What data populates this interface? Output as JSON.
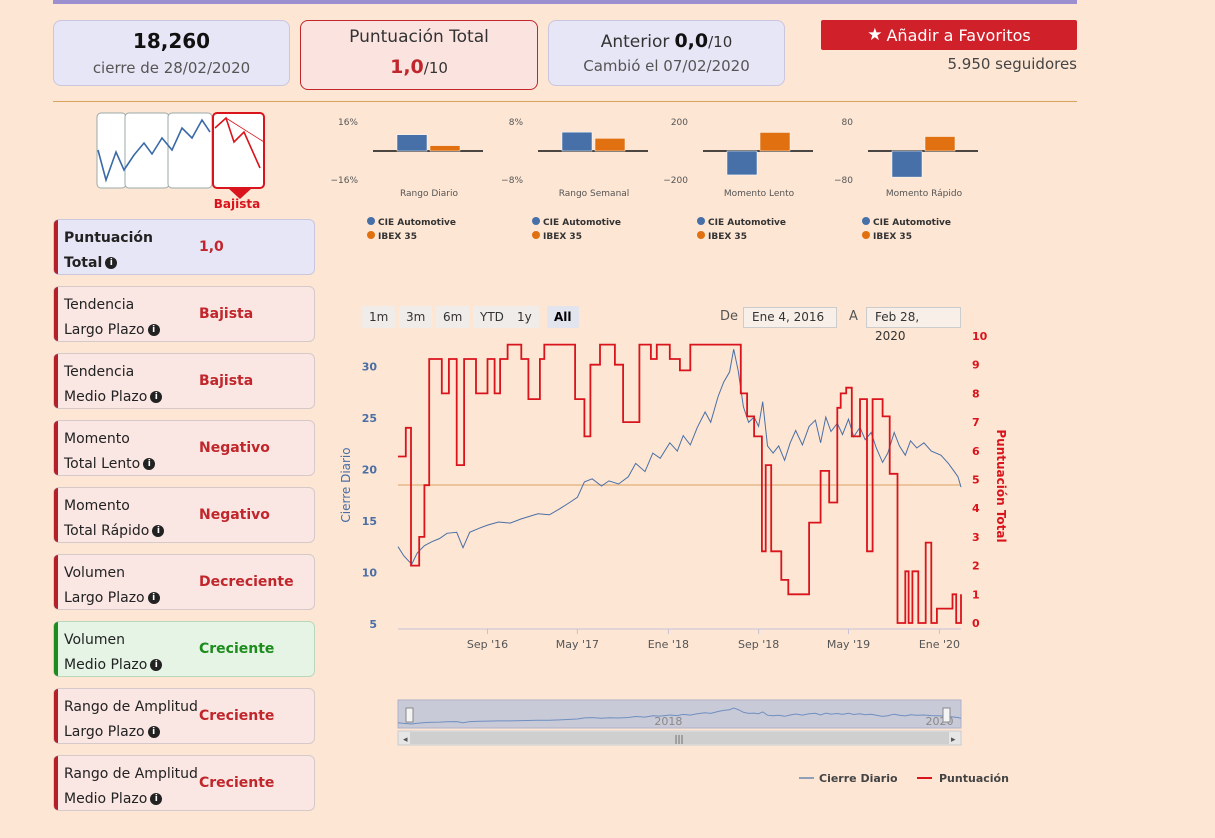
{
  "summary": {
    "price": "18,260",
    "price_caption": "cierre de 28/02/2020",
    "score_title": "Puntuación Total",
    "score_value": "1,0",
    "score_suffix": "/10",
    "previous_label": "Anterior",
    "previous_value": "0,0",
    "previous_suffix": "/10",
    "changed_caption": "Cambió el 07/02/2020"
  },
  "favorites_button": "Añadir a Favoritos",
  "followers": "5.950 seguidores",
  "trend_selector": {
    "selected_label": "Bajista"
  },
  "indicators": [
    {
      "line1": "Puntuación",
      "line2": "Total",
      "value": "1,0",
      "state": "total"
    },
    {
      "line1": "Tendencia",
      "line2": "Largo Plazo",
      "value": "Bajista",
      "state": "down"
    },
    {
      "line1": "Tendencia",
      "line2": "Medio Plazo",
      "value": "Bajista",
      "state": "down"
    },
    {
      "line1": "Momento",
      "line2": "Total Lento",
      "value": "Negativo",
      "state": "down"
    },
    {
      "line1": "Momento",
      "line2": "Total Rápido",
      "value": "Negativo",
      "state": "down"
    },
    {
      "line1": "Volumen",
      "line2": "Largo Plazo",
      "value": "Decreciente",
      "state": "down"
    },
    {
      "line1": "Volumen",
      "line2": "Medio Plazo",
      "value": "Creciente",
      "state": "up"
    },
    {
      "line1": "Rango de Amplitud",
      "line2": "Largo Plazo",
      "value": "Creciente",
      "state": "down"
    },
    {
      "line1": "Rango de Amplitud",
      "line2": "Medio Plazo",
      "value": "Creciente",
      "state": "down"
    }
  ],
  "colors": {
    "series_a": "#4670a7",
    "series_b": "#e07010",
    "score_line": "#d9141c",
    "close_line": "#4a6fa5",
    "threshold": "#e6b888"
  },
  "range_selector": {
    "buttons": [
      "1m",
      "3m",
      "6m",
      "YTD",
      "1y",
      "All"
    ],
    "selected": "All",
    "from_label": "De",
    "from_value": "Ene 4, 2016",
    "to_label": "A",
    "to_value": "Feb 28, 2020"
  },
  "navigator": {
    "year_labels": [
      "2018",
      "2020"
    ]
  },
  "chart_data": [
    {
      "type": "bar",
      "title": "Rango Diario",
      "ylim": [
        -16,
        16
      ],
      "ytick_labels": [
        "16%",
        "−16%"
      ],
      "series": [
        {
          "name": "CIE Automotive",
          "values": [
            9
          ]
        },
        {
          "name": "IBEX 35",
          "values": [
            3
          ]
        }
      ]
    },
    {
      "type": "bar",
      "title": "Rango Semanal",
      "ylim": [
        -8,
        8
      ],
      "ytick_labels": [
        "8%",
        "−8%"
      ],
      "series": [
        {
          "name": "CIE Automotive",
          "values": [
            5.2
          ]
        },
        {
          "name": "IBEX 35",
          "values": [
            3.5
          ]
        }
      ]
    },
    {
      "type": "bar",
      "title": "Momento Lento",
      "ylim": [
        -200,
        200
      ],
      "ytick_labels": [
        "200",
        "−200"
      ],
      "series": [
        {
          "name": "CIE Automotive",
          "values": [
            -165
          ]
        },
        {
          "name": "IBEX 35",
          "values": [
            128
          ]
        }
      ]
    },
    {
      "type": "bar",
      "title": "Momento Rápido",
      "ylim": [
        -80,
        80
      ],
      "ytick_labels": [
        "80",
        "−80"
      ],
      "series": [
        {
          "name": "CIE Automotive",
          "values": [
            -72
          ]
        },
        {
          "name": "IBEX 35",
          "values": [
            40
          ]
        }
      ]
    },
    {
      "type": "line",
      "ylabel": "Cierre Diario",
      "y2label": "Puntuación Total",
      "ylim": [
        4.5,
        32.5
      ],
      "y2lim": [
        0,
        10
      ],
      "yticks": [
        5,
        10,
        15,
        20,
        25,
        30
      ],
      "y2ticks": [
        0,
        1,
        2,
        3,
        4,
        5,
        6,
        7,
        8,
        9,
        10
      ],
      "xlim": [
        "2016-01-04",
        "2020-02-28"
      ],
      "xtick_labels": [
        "Sep '16",
        "May '17",
        "Ene '18",
        "Sep '18",
        "May '19",
        "Ene '20"
      ],
      "xtick_dates": [
        "2016-09-01",
        "2017-05-01",
        "2018-01-01",
        "2018-09-01",
        "2019-05-01",
        "2020-01-01"
      ],
      "threshold_y": 18.5,
      "legend": [
        "Cierre Diario",
        "Puntuación"
      ],
      "series": [
        {
          "name": "Cierre Diario",
          "axis": "left",
          "points": [
            [
              "2016-01-04",
              12.5
            ],
            [
              "2016-01-20",
              11.6
            ],
            [
              "2016-02-10",
              10.8
            ],
            [
              "2016-02-25",
              11.9
            ],
            [
              "2016-03-15",
              12.6
            ],
            [
              "2016-04-05",
              13.0
            ],
            [
              "2016-04-25",
              13.3
            ],
            [
              "2016-05-15",
              13.8
            ],
            [
              "2016-06-10",
              13.9
            ],
            [
              "2016-06-27",
              12.4
            ],
            [
              "2016-07-15",
              13.9
            ],
            [
              "2016-08-10",
              14.3
            ],
            [
              "2016-09-01",
              14.6
            ],
            [
              "2016-10-01",
              14.9
            ],
            [
              "2016-11-01",
              14.8
            ],
            [
              "2016-12-01",
              15.2
            ],
            [
              "2017-01-15",
              15.7
            ],
            [
              "2017-02-15",
              15.6
            ],
            [
              "2017-03-15",
              16.2
            ],
            [
              "2017-04-10",
              16.8
            ],
            [
              "2017-05-01",
              17.3
            ],
            [
              "2017-05-20",
              18.8
            ],
            [
              "2017-06-10",
              19.1
            ],
            [
              "2017-07-05",
              18.4
            ],
            [
              "2017-07-25",
              18.9
            ],
            [
              "2017-08-20",
              18.6
            ],
            [
              "2017-09-15",
              19.3
            ],
            [
              "2017-10-05",
              20.6
            ],
            [
              "2017-10-30",
              19.8
            ],
            [
              "2017-11-20",
              21.6
            ],
            [
              "2017-12-10",
              21.1
            ],
            [
              "2018-01-05",
              22.6
            ],
            [
              "2018-01-25",
              21.8
            ],
            [
              "2018-02-10",
              23.3
            ],
            [
              "2018-03-01",
              22.4
            ],
            [
              "2018-03-20",
              24.1
            ],
            [
              "2018-04-10",
              25.6
            ],
            [
              "2018-04-25",
              24.6
            ],
            [
              "2018-05-15",
              27.1
            ],
            [
              "2018-05-30",
              28.5
            ],
            [
              "2018-06-15",
              29.5
            ],
            [
              "2018-06-26",
              31.7
            ],
            [
              "2018-07-08",
              29.6
            ],
            [
              "2018-07-22",
              26.1
            ],
            [
              "2018-08-05",
              24.6
            ],
            [
              "2018-08-20",
              25.1
            ],
            [
              "2018-09-01",
              24.2
            ],
            [
              "2018-09-12",
              26.6
            ],
            [
              "2018-09-25",
              22.3
            ],
            [
              "2018-10-10",
              21.6
            ],
            [
              "2018-10-25",
              22.3
            ],
            [
              "2018-11-10",
              20.9
            ],
            [
              "2018-11-25",
              22.6
            ],
            [
              "2018-12-10",
              23.8
            ],
            [
              "2018-12-28",
              22.4
            ],
            [
              "2019-01-15",
              24.2
            ],
            [
              "2019-02-01",
              24.8
            ],
            [
              "2019-02-15",
              22.6
            ],
            [
              "2019-03-01",
              25.1
            ],
            [
              "2019-03-15",
              23.7
            ],
            [
              "2019-04-01",
              24.5
            ],
            [
              "2019-04-15",
              23.4
            ],
            [
              "2019-05-01",
              24.9
            ],
            [
              "2019-05-15",
              23.2
            ],
            [
              "2019-06-01",
              24.1
            ],
            [
              "2019-06-15",
              22.9
            ],
            [
              "2019-07-01",
              23.6
            ],
            [
              "2019-07-15",
              22.1
            ],
            [
              "2019-08-01",
              20.7
            ],
            [
              "2019-08-15",
              21.6
            ],
            [
              "2019-09-01",
              23.6
            ],
            [
              "2019-09-15",
              22.3
            ],
            [
              "2019-10-01",
              21.4
            ],
            [
              "2019-10-15",
              22.8
            ],
            [
              "2019-11-01",
              22.1
            ],
            [
              "2019-11-20",
              22.6
            ],
            [
              "2019-12-10",
              21.8
            ],
            [
              "2020-01-05",
              21.4
            ],
            [
              "2020-01-25",
              20.6
            ],
            [
              "2020-02-10",
              19.8
            ],
            [
              "2020-02-20",
              19.3
            ],
            [
              "2020-02-28",
              18.3
            ]
          ]
        },
        {
          "name": "Puntuación",
          "axis": "right",
          "steps": [
            [
              "2016-01-04",
              5.8
            ],
            [
              "2016-01-25",
              6.8
            ],
            [
              "2016-02-08",
              2.0
            ],
            [
              "2016-03-01",
              3.0
            ],
            [
              "2016-03-15",
              4.8
            ],
            [
              "2016-03-28",
              9.2
            ],
            [
              "2016-05-01",
              8.0
            ],
            [
              "2016-05-20",
              9.2
            ],
            [
              "2016-06-10",
              5.5
            ],
            [
              "2016-06-30",
              9.2
            ],
            [
              "2016-08-01",
              8.0
            ],
            [
              "2016-09-01",
              9.2
            ],
            [
              "2016-09-20",
              8.0
            ],
            [
              "2016-10-05",
              9.2
            ],
            [
              "2016-10-25",
              9.7
            ],
            [
              "2016-12-01",
              9.2
            ],
            [
              "2016-12-20",
              7.8
            ],
            [
              "2017-01-10",
              7.8
            ],
            [
              "2017-01-20",
              9.2
            ],
            [
              "2017-02-01",
              9.7
            ],
            [
              "2017-03-01",
              9.7
            ],
            [
              "2017-04-01",
              9.7
            ],
            [
              "2017-04-25",
              7.8
            ],
            [
              "2017-05-20",
              6.5
            ],
            [
              "2017-06-05",
              9.0
            ],
            [
              "2017-07-01",
              9.7
            ],
            [
              "2017-08-10",
              9.0
            ],
            [
              "2017-09-01",
              7.0
            ],
            [
              "2017-10-01",
              7.0
            ],
            [
              "2017-10-15",
              9.7
            ],
            [
              "2017-11-15",
              9.2
            ],
            [
              "2017-12-01",
              9.7
            ],
            [
              "2018-01-05",
              9.2
            ],
            [
              "2018-02-01",
              8.8
            ],
            [
              "2018-03-01",
              9.7
            ],
            [
              "2018-04-01",
              9.7
            ],
            [
              "2018-05-01",
              9.7
            ],
            [
              "2018-06-01",
              9.7
            ],
            [
              "2018-07-15",
              8.0
            ],
            [
              "2018-08-01",
              7.2
            ],
            [
              "2018-08-20",
              6.5
            ],
            [
              "2018-09-01",
              6.5
            ],
            [
              "2018-09-10",
              2.5
            ],
            [
              "2018-09-20",
              5.5
            ],
            [
              "2018-10-05",
              2.5
            ],
            [
              "2018-11-01",
              1.5
            ],
            [
              "2018-11-20",
              1.0
            ],
            [
              "2018-12-10",
              1.0
            ],
            [
              "2018-12-31",
              1.0
            ],
            [
              "2019-01-15",
              3.5
            ],
            [
              "2019-02-01",
              3.5
            ],
            [
              "2019-02-15",
              5.3
            ],
            [
              "2019-03-10",
              4.2
            ],
            [
              "2019-04-01",
              7.5
            ],
            [
              "2019-04-10",
              8.0
            ],
            [
              "2019-04-25",
              8.2
            ],
            [
              "2019-05-10",
              6.5
            ],
            [
              "2019-06-01",
              7.8
            ],
            [
              "2019-06-20",
              2.5
            ],
            [
              "2019-07-05",
              7.8
            ],
            [
              "2019-08-01",
              7.2
            ],
            [
              "2019-08-20",
              5.2
            ],
            [
              "2019-09-10",
              0.0
            ],
            [
              "2019-10-01",
              1.8
            ],
            [
              "2019-10-10",
              0.0
            ],
            [
              "2019-10-20",
              1.8
            ],
            [
              "2019-11-05",
              0.0
            ],
            [
              "2019-11-25",
              2.8
            ],
            [
              "2019-12-10",
              0.0
            ],
            [
              "2019-12-25",
              0.5
            ],
            [
              "2020-01-20",
              0.5
            ],
            [
              "2020-02-05",
              1.0
            ],
            [
              "2020-02-15",
              0.0
            ],
            [
              "2020-02-28",
              1.0
            ]
          ]
        }
      ]
    }
  ]
}
